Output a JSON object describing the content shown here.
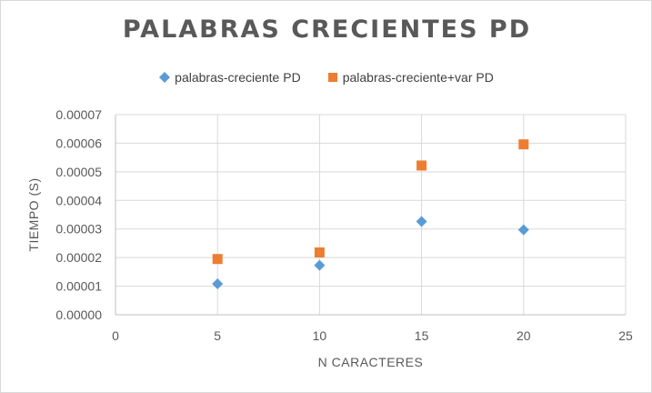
{
  "chart_data": {
    "type": "scatter",
    "title": "PALABRAS CRECIENTES PD",
    "xlabel": "N CARACTERES",
    "ylabel": "TIEMPO (S)",
    "xlim": [
      0,
      25
    ],
    "ylim": [
      0,
      7e-05
    ],
    "x_ticks": [
      0,
      5,
      10,
      15,
      20,
      25
    ],
    "x_tick_labels": [
      "0",
      "5",
      "10",
      "15",
      "20",
      "25"
    ],
    "y_ticks": [
      0,
      1e-05,
      2e-05,
      3e-05,
      4e-05,
      5e-05,
      6e-05,
      7e-05
    ],
    "y_tick_labels": [
      "0.00000",
      "0.00001",
      "0.00002",
      "0.00003",
      "0.00004",
      "0.00005",
      "0.00006",
      "0.00007"
    ],
    "grid": true,
    "legend_position": "top",
    "series": [
      {
        "name": "palabras-creciente PD",
        "marker": "diamond",
        "color": "#5b9bd5",
        "points": [
          {
            "x": 5,
            "y": 1.08e-05
          },
          {
            "x": 10,
            "y": 1.73e-05
          },
          {
            "x": 15,
            "y": 3.26e-05
          },
          {
            "x": 20,
            "y": 2.97e-05
          }
        ]
      },
      {
        "name": "palabras-creciente+var PD",
        "marker": "square",
        "color": "#ed7d31",
        "points": [
          {
            "x": 5,
            "y": 1.95e-05
          },
          {
            "x": 10,
            "y": 2.18e-05
          },
          {
            "x": 15,
            "y": 5.22e-05
          },
          {
            "x": 20,
            "y": 5.96e-05
          }
        ]
      }
    ]
  }
}
